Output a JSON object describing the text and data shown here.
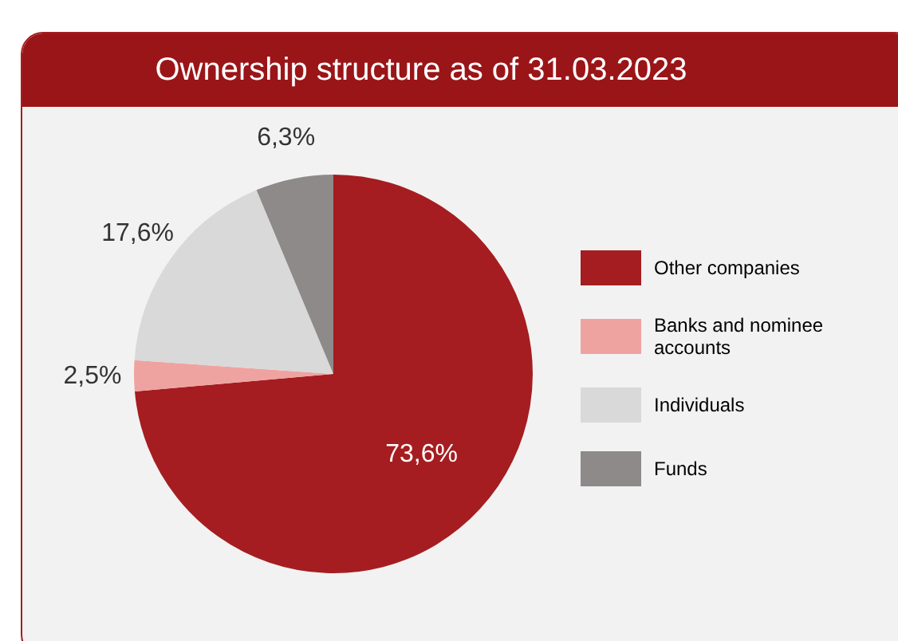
{
  "chart_data": {
    "type": "pie",
    "title": "Ownership structure as of 31.03.2023",
    "categories": [
      "Other companies",
      "Banks and nominee accounts",
      "Individuals",
      "Funds"
    ],
    "values": [
      73.6,
      2.5,
      17.6,
      6.3
    ],
    "colors": [
      "#a51d20",
      "#efa3a1",
      "#d9d9d9",
      "#8e8a89"
    ],
    "value_labels": [
      "73,6%",
      "2,5%",
      "17,6%",
      "6,3%"
    ],
    "legend": "right"
  }
}
